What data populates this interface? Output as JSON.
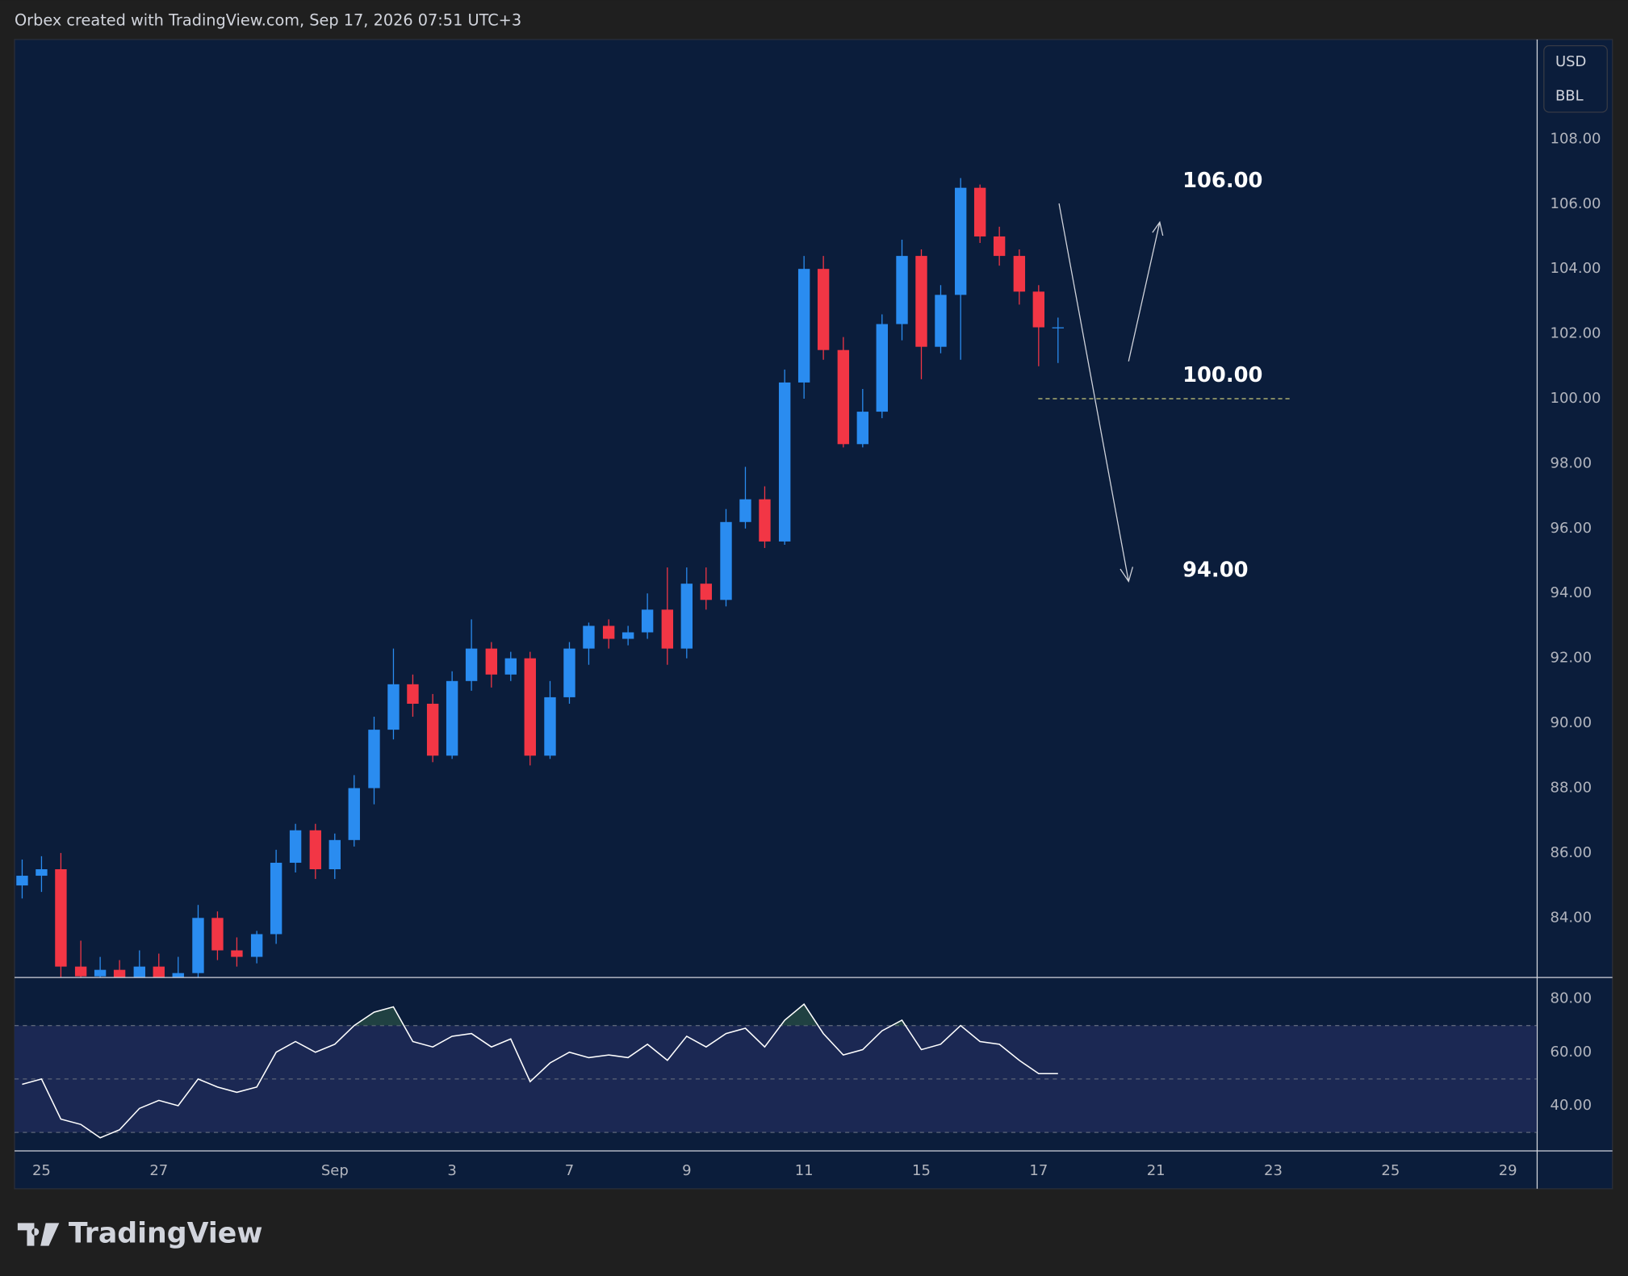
{
  "header": {
    "text": "Orbex created with TradingView.com, Sep 17, 2026 07:51 UTC+3"
  },
  "currency": [
    "USD",
    "BBL"
  ],
  "logo": "TradingView",
  "chart_data": [
    {
      "type": "candlestick",
      "up_color": "#2a8cf0",
      "down_color": "#f23645",
      "x": [
        -0.33,
        0,
        0.33,
        0.67,
        1,
        1.33,
        1.67,
        2,
        2.33,
        2.67,
        3,
        3.33,
        3.67,
        4,
        4.33,
        4.67,
        5,
        5.33,
        5.67,
        6,
        6.33,
        6.67,
        7,
        7.33,
        7.67,
        8,
        8.33,
        8.67,
        9,
        9.33,
        9.67,
        10,
        10.33,
        10.67,
        11,
        11.33,
        11.67,
        12,
        12.33,
        12.67,
        13,
        13.33,
        13.67,
        14,
        14.33,
        14.67,
        15,
        15.33,
        15.67,
        16,
        16.33,
        16.67,
        17,
        17.33
      ],
      "open": [
        85.0,
        85.3,
        85.5,
        82.5,
        82.2,
        82.4,
        82.1,
        82.5,
        82.0,
        82.3,
        84.0,
        83.0,
        82.8,
        83.5,
        85.7,
        86.7,
        85.5,
        86.4,
        88.0,
        89.8,
        91.2,
        90.6,
        89.0,
        91.3,
        92.3,
        91.5,
        92.0,
        89.0,
        90.8,
        92.3,
        93.0,
        92.6,
        92.8,
        93.5,
        92.3,
        94.3,
        93.8,
        96.2,
        96.9,
        95.6,
        100.5,
        104.0,
        101.5,
        98.6,
        99.6,
        102.3,
        104.4,
        101.6,
        103.2,
        106.5,
        105.0,
        104.4,
        103.3,
        102.2
      ],
      "high": [
        85.8,
        85.9,
        86.0,
        83.3,
        82.8,
        82.7,
        83.0,
        82.9,
        82.8,
        84.4,
        84.2,
        83.4,
        83.6,
        86.1,
        86.9,
        86.9,
        86.6,
        88.4,
        90.2,
        92.3,
        91.5,
        90.9,
        91.6,
        93.2,
        92.5,
        92.2,
        92.2,
        91.3,
        92.5,
        93.1,
        93.2,
        93.0,
        94.0,
        94.8,
        94.8,
        94.8,
        96.6,
        97.9,
        97.3,
        100.9,
        104.4,
        104.4,
        101.9,
        100.3,
        102.6,
        104.9,
        104.6,
        103.5,
        106.8,
        106.6,
        105.3,
        104.6,
        103.5,
        102.5
      ],
      "low": [
        84.6,
        84.8,
        82.0,
        81.8,
        81.9,
        81.7,
        82.0,
        81.7,
        81.9,
        82.1,
        82.7,
        82.5,
        82.6,
        83.2,
        85.4,
        85.2,
        85.2,
        86.2,
        87.5,
        89.5,
        90.2,
        88.8,
        88.9,
        91.0,
        91.1,
        91.3,
        88.7,
        88.9,
        90.6,
        91.8,
        92.3,
        92.4,
        92.6,
        91.8,
        92.0,
        93.5,
        93.6,
        96.0,
        95.4,
        95.5,
        100.0,
        101.2,
        98.5,
        98.5,
        99.4,
        101.8,
        100.6,
        101.4,
        101.2,
        104.8,
        104.1,
        102.9,
        101.0,
        101.1
      ],
      "close": [
        85.3,
        85.5,
        82.5,
        82.2,
        82.4,
        82.1,
        82.5,
        82.0,
        82.3,
        84.0,
        83.0,
        82.8,
        83.5,
        85.7,
        86.7,
        85.5,
        86.4,
        88.0,
        89.8,
        91.2,
        90.6,
        89.0,
        91.3,
        92.3,
        91.5,
        92.0,
        89.0,
        90.8,
        92.3,
        93.0,
        92.6,
        92.8,
        93.5,
        92.3,
        94.3,
        93.8,
        96.2,
        96.9,
        95.6,
        100.5,
        104.0,
        101.5,
        98.6,
        99.6,
        102.3,
        104.4,
        101.6,
        103.2,
        106.5,
        105.0,
        104.4,
        103.3,
        102.2,
        102.2
      ],
      "ylim": [
        82.18,
        111.07
      ],
      "yticks": [
        {
          "value": 84,
          "label": "84.00"
        },
        {
          "value": 86,
          "label": "86.00"
        },
        {
          "value": 88,
          "label": "88.00"
        },
        {
          "value": 90,
          "label": "90.00"
        },
        {
          "value": 92,
          "label": "92.00"
        },
        {
          "value": 94,
          "label": "94.00"
        },
        {
          "value": 96,
          "label": "96.00"
        },
        {
          "value": 98,
          "label": "98.00"
        },
        {
          "value": 100,
          "label": "100.00"
        },
        {
          "value": 102,
          "label": "102.00"
        },
        {
          "value": 104,
          "label": "104.00"
        },
        {
          "value": 106,
          "label": "106.00"
        },
        {
          "value": 108,
          "label": "108.00"
        }
      ],
      "xlim": [
        -0.46,
        25.49
      ],
      "xticks": [
        {
          "value": 0,
          "label": "25"
        },
        {
          "value": 2,
          "label": "27"
        },
        {
          "value": 5,
          "label": "Sep"
        },
        {
          "value": 7,
          "label": "3"
        },
        {
          "value": 9,
          "label": "7"
        },
        {
          "value": 11,
          "label": "9"
        },
        {
          "value": 13,
          "label": "11"
        },
        {
          "value": 15,
          "label": "15"
        },
        {
          "value": 17,
          "label": "17"
        },
        {
          "value": 19,
          "label": "21"
        },
        {
          "value": 21,
          "label": "23"
        },
        {
          "value": 23,
          "label": "25"
        },
        {
          "value": 25,
          "label": "29"
        }
      ],
      "annotations": [
        {
          "value": 106,
          "label": "106.00"
        },
        {
          "value": 100,
          "label": "100.00"
        },
        {
          "value": 94,
          "label": "94.00"
        }
      ]
    },
    {
      "type": "line",
      "color": "#ffffff",
      "x": [
        -0.33,
        0,
        0.33,
        0.67,
        1,
        1.33,
        1.67,
        2,
        2.33,
        2.67,
        3,
        3.33,
        3.67,
        4,
        4.33,
        4.67,
        5,
        5.33,
        5.67,
        6,
        6.33,
        6.67,
        7,
        7.33,
        7.67,
        8,
        8.33,
        8.67,
        9,
        9.33,
        9.67,
        10,
        10.33,
        10.67,
        11,
        11.33,
        11.67,
        12,
        12.33,
        12.67,
        13,
        13.33,
        13.67,
        14,
        14.33,
        14.67,
        15,
        15.33,
        15.67,
        16,
        16.33,
        16.67,
        17,
        17.33
      ],
      "values": [
        48,
        50,
        35,
        33,
        28,
        31,
        39,
        42,
        40,
        50,
        47,
        45,
        47,
        60,
        64,
        60,
        63,
        70,
        75,
        77,
        64,
        62,
        66,
        67,
        62,
        65,
        49,
        56,
        60,
        58,
        59,
        58,
        63,
        57,
        66,
        62,
        67,
        69,
        62,
        72,
        78,
        67,
        59,
        61,
        68,
        72,
        61,
        63,
        70,
        64,
        63,
        57,
        52,
        52
      ],
      "ylim": [
        23.3,
        87.4
      ],
      "xlim": [
        -0.46,
        25.49
      ],
      "yticks": [
        {
          "value": 40,
          "label": "40.00"
        },
        {
          "value": 60,
          "label": "60.00"
        },
        {
          "value": 80,
          "label": "80.00"
        }
      ],
      "levels": [
        70,
        50,
        30
      ]
    }
  ]
}
